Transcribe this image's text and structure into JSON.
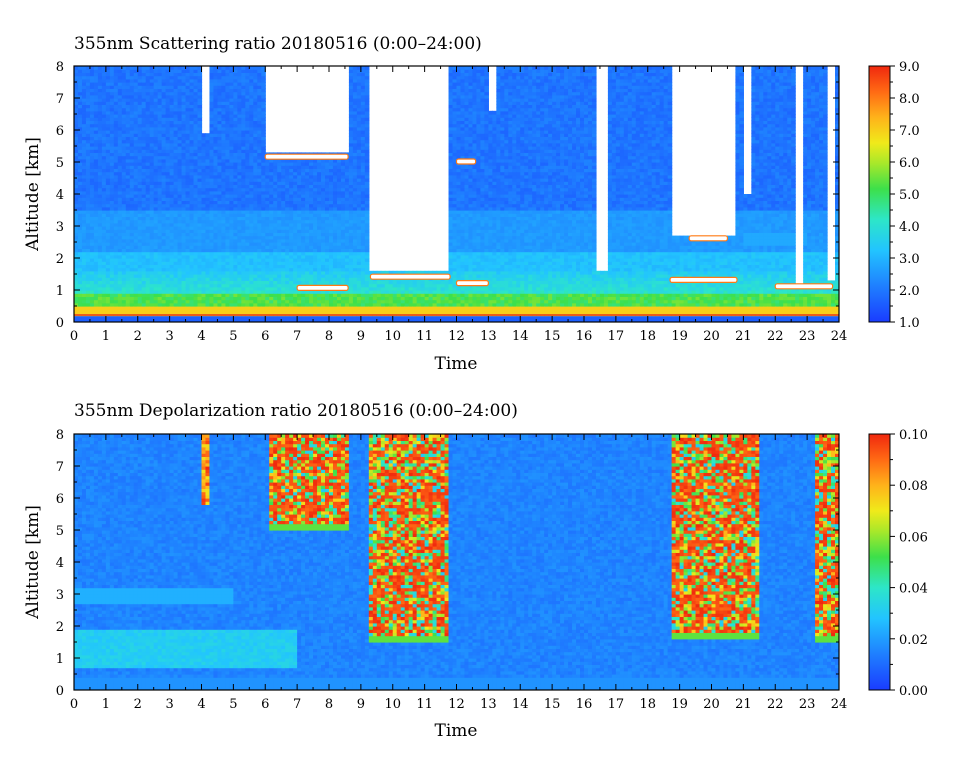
{
  "chart_data": [
    {
      "type": "heatmap",
      "title": "355nm Scattering ratio  20180516 (0:00–24:00)",
      "xlabel": "Time",
      "ylabel": "Altitude [km]",
      "xlim": [
        0,
        24
      ],
      "ylim": [
        0,
        8
      ],
      "x_ticks": [
        "0",
        "1",
        "2",
        "3",
        "4",
        "5",
        "6",
        "7",
        "8",
        "9",
        "10",
        "11",
        "12",
        "13",
        "14",
        "15",
        "16",
        "17",
        "18",
        "19",
        "20",
        "21",
        "22",
        "23",
        "24"
      ],
      "y_ticks": [
        "0",
        "1",
        "2",
        "3",
        "4",
        "5",
        "6",
        "7",
        "8"
      ],
      "colorbar": {
        "range": [
          1.0,
          9.0
        ],
        "ticks": [
          "1.0",
          "2.0",
          "3.0",
          "4.0",
          "5.0",
          "6.0",
          "7.0",
          "8.0",
          "9.0"
        ]
      },
      "features": [
        {
          "kind": "boundary_layer",
          "x": [
            0,
            24
          ],
          "y": [
            0.3,
            1.5
          ],
          "value": 4.0
        },
        {
          "kind": "cloud_base",
          "x": [
            6.0,
            8.6
          ],
          "y": [
            5.0,
            5.3
          ],
          "value": 8.0
        },
        {
          "kind": "cloud_base",
          "x": [
            7.0,
            12.0
          ],
          "y": [
            1.0,
            1.5
          ],
          "value": 8.0
        },
        {
          "kind": "cloud_base",
          "x": [
            18.5,
            21.5
          ],
          "y": [
            1.2,
            2.7
          ],
          "value": 8.0
        },
        {
          "kind": "no_data",
          "x": [
            6.0,
            8.6
          ],
          "y": [
            5.3,
            8.0
          ]
        },
        {
          "kind": "no_data",
          "x": [
            9.2,
            11.8
          ],
          "y": [
            1.6,
            8.0
          ]
        },
        {
          "kind": "no_data",
          "x": [
            18.7,
            20.8
          ],
          "y": [
            2.7,
            8.0
          ]
        }
      ]
    },
    {
      "type": "heatmap",
      "title": "355nm Depolarization ratio  20180516 (0:00–24:00)",
      "xlabel": "Time",
      "ylabel": "Altitude [km]",
      "xlim": [
        0,
        24
      ],
      "ylim": [
        0,
        8
      ],
      "x_ticks": [
        "0",
        "1",
        "2",
        "3",
        "4",
        "5",
        "6",
        "7",
        "8",
        "9",
        "10",
        "11",
        "12",
        "13",
        "14",
        "15",
        "16",
        "17",
        "18",
        "19",
        "20",
        "21",
        "22",
        "23",
        "24"
      ],
      "y_ticks": [
        "0",
        "1",
        "2",
        "3",
        "4",
        "5",
        "6",
        "7",
        "8"
      ],
      "colorbar": {
        "range": [
          0.0,
          0.1
        ],
        "ticks": [
          "0.00",
          "0.02",
          "0.04",
          "0.06",
          "0.08",
          "0.10"
        ]
      },
      "features": [
        {
          "kind": "dust_layer",
          "x": [
            0,
            7
          ],
          "y": [
            0.7,
            1.9
          ],
          "value": 0.03
        },
        {
          "kind": "cirrus",
          "x": [
            6.1,
            8.6
          ],
          "y": [
            5.0,
            8.0
          ],
          "value": 0.09
        },
        {
          "kind": "cirrus",
          "x": [
            9.2,
            11.8
          ],
          "y": [
            1.5,
            8.0
          ],
          "value": 0.09
        },
        {
          "kind": "cirrus",
          "x": [
            18.7,
            21.5
          ],
          "y": [
            1.6,
            8.0
          ],
          "value": 0.09
        },
        {
          "kind": "cirrus",
          "x": [
            23.2,
            24.0
          ],
          "y": [
            1.5,
            8.0
          ],
          "value": 0.08
        }
      ]
    }
  ]
}
